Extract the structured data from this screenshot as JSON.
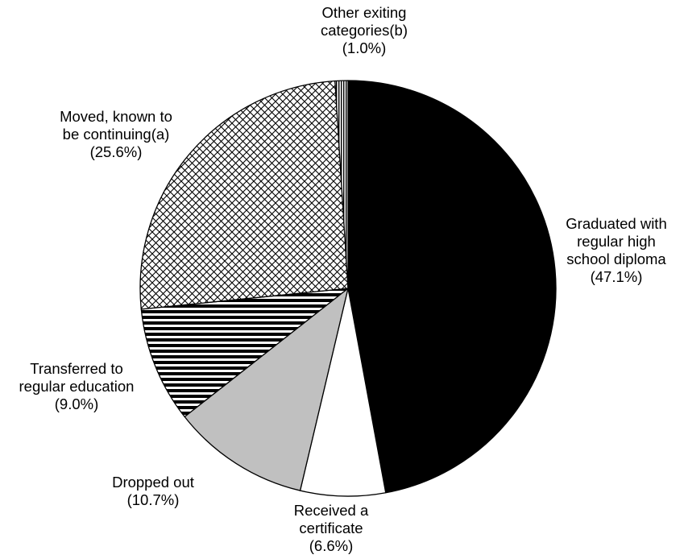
{
  "chart_data": {
    "type": "pie",
    "title": "",
    "start_angle_deg": 0,
    "direction": "clockwise",
    "slices": [
      {
        "label_lines": [
          "Graduated with",
          "regular high",
          "school diploma",
          "(47.1%)"
        ],
        "value": 47.1,
        "fill": "solid",
        "color": "#000000"
      },
      {
        "label_lines": [
          "Received a",
          "certificate",
          "(6.6%)"
        ],
        "value": 6.6,
        "fill": "solid",
        "color": "#ffffff"
      },
      {
        "label_lines": [
          "Dropped out",
          "(10.7%)"
        ],
        "value": 10.7,
        "fill": "solid",
        "color": "#c0c0c0"
      },
      {
        "label_lines": [
          "Transferred to",
          "regular education",
          "(9.0%)"
        ],
        "value": 9.0,
        "fill": "horizontal-stripes",
        "color": "#000000"
      },
      {
        "label_lines": [
          "Moved, known to",
          "be continuing(a)",
          "(25.6%)"
        ],
        "value": 25.6,
        "fill": "crosshatch",
        "color": "#000000"
      },
      {
        "label_lines": [
          "Other exiting",
          "categories(b)",
          "(1.0%)"
        ],
        "value": 1.0,
        "fill": "vertical-stripes",
        "color": "#000000"
      }
    ]
  }
}
